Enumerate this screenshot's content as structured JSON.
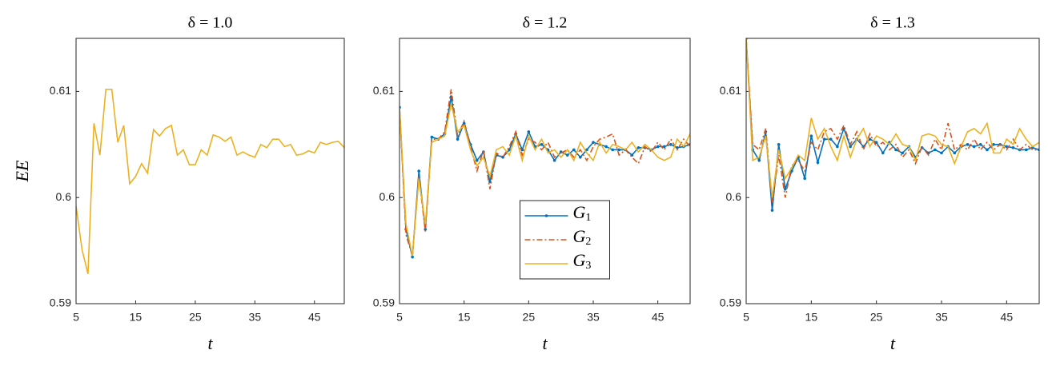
{
  "chart_data": [
    {
      "type": "line",
      "title": "δ = 1.0",
      "xlabel": "t",
      "ylabel": "EE",
      "x": [
        5,
        6,
        7,
        8,
        9,
        10,
        11,
        12,
        13,
        14,
        15,
        16,
        17,
        18,
        19,
        20,
        21,
        22,
        23,
        24,
        25,
        26,
        27,
        28,
        29,
        30,
        31,
        32,
        33,
        34,
        35,
        36,
        37,
        38,
        39,
        40,
        41,
        42,
        43,
        44,
        45,
        46,
        47,
        48,
        49,
        50
      ],
      "xlim": [
        5,
        50
      ],
      "xticks": [
        5,
        15,
        25,
        35,
        45
      ],
      "ylim": [
        0.59,
        0.615
      ],
      "yticks": [
        0.59,
        0.6,
        0.61
      ],
      "series": [
        {
          "color": "#edb120",
          "values": [
            0.5992,
            0.5951,
            0.5928,
            0.607,
            0.604,
            0.6102,
            0.6102,
            0.6052,
            0.6068,
            0.6013,
            0.602,
            0.6032,
            0.6023,
            0.6064,
            0.6058,
            0.6065,
            0.6068,
            0.604,
            0.6045,
            0.6031,
            0.6031,
            0.6045,
            0.604,
            0.6059,
            0.6057,
            0.6053,
            0.6057,
            0.604,
            0.6043,
            0.604,
            0.6038,
            0.605,
            0.6047,
            0.6055,
            0.6055,
            0.6048,
            0.605,
            0.604,
            0.6041,
            0.6044,
            0.6042,
            0.6052,
            0.605,
            0.6052,
            0.6053,
            0.6047
          ]
        }
      ]
    },
    {
      "type": "line",
      "title": "δ = 1.2",
      "xlabel": "t",
      "x": [
        5,
        6,
        7,
        8,
        9,
        10,
        11,
        12,
        13,
        14,
        15,
        16,
        17,
        18,
        19,
        20,
        21,
        22,
        23,
        24,
        25,
        26,
        27,
        28,
        29,
        30,
        31,
        32,
        33,
        34,
        35,
        36,
        37,
        38,
        39,
        40,
        41,
        42,
        43,
        44,
        45,
        46,
        47,
        48,
        49,
        50
      ],
      "xlim": [
        5,
        50
      ],
      "xticks": [
        5,
        15,
        25,
        35,
        45
      ],
      "ylim": [
        0.59,
        0.615
      ],
      "yticks": [
        0.59,
        0.6,
        0.61
      ],
      "legend": "center",
      "series": [
        {
          "name": "G1",
          "color": "#0072bd",
          "marker": "dot",
          "linestyle": "solid",
          "values": [
            0.6085,
            0.597,
            0.5944,
            0.6025,
            0.597,
            0.6057,
            0.6055,
            0.606,
            0.6095,
            0.6055,
            0.607,
            0.605,
            0.6035,
            0.6043,
            0.6015,
            0.604,
            0.6038,
            0.6045,
            0.606,
            0.6045,
            0.6062,
            0.6048,
            0.605,
            0.6045,
            0.6035,
            0.6043,
            0.604,
            0.6045,
            0.6038,
            0.6045,
            0.6052,
            0.605,
            0.6048,
            0.6045,
            0.6045,
            0.6045,
            0.604,
            0.6047,
            0.6047,
            0.6045,
            0.6048,
            0.6048,
            0.605,
            0.6047,
            0.6048,
            0.605
          ]
        },
        {
          "name": "G2",
          "color": "#d95319",
          "linestyle": "dashdot",
          "values": [
            0.6085,
            0.5965,
            0.5945,
            0.602,
            0.5968,
            0.6055,
            0.6055,
            0.6062,
            0.6102,
            0.6058,
            0.6072,
            0.6048,
            0.6025,
            0.6045,
            0.6008,
            0.6042,
            0.6038,
            0.6048,
            0.6062,
            0.604,
            0.6055,
            0.6052,
            0.6045,
            0.6052,
            0.6038,
            0.6042,
            0.6045,
            0.6038,
            0.6045,
            0.6035,
            0.6048,
            0.6055,
            0.6057,
            0.606,
            0.604,
            0.6045,
            0.6038,
            0.6032,
            0.6048,
            0.6043,
            0.6052,
            0.6045,
            0.6055,
            0.6045,
            0.6055,
            0.6048
          ]
        },
        {
          "name": "G3",
          "color": "#edb120",
          "linestyle": "solid",
          "values": [
            0.6085,
            0.5975,
            0.5945,
            0.6018,
            0.5975,
            0.6052,
            0.6055,
            0.6058,
            0.6088,
            0.6062,
            0.6068,
            0.6045,
            0.603,
            0.6038,
            0.602,
            0.6045,
            0.6048,
            0.604,
            0.6058,
            0.6035,
            0.6058,
            0.6045,
            0.6055,
            0.6042,
            0.6045,
            0.6038,
            0.6045,
            0.6035,
            0.6052,
            0.6042,
            0.6035,
            0.6052,
            0.6042,
            0.605,
            0.6048,
            0.6045,
            0.6052,
            0.6043,
            0.605,
            0.6045,
            0.6038,
            0.6035,
            0.6038,
            0.6055,
            0.6048,
            0.606
          ]
        }
      ]
    },
    {
      "type": "line",
      "title": "δ = 1.3",
      "xlabel": "t",
      "x": [
        5,
        6,
        7,
        8,
        9,
        10,
        11,
        12,
        13,
        14,
        15,
        16,
        17,
        18,
        19,
        20,
        21,
        22,
        23,
        24,
        25,
        26,
        27,
        28,
        29,
        30,
        31,
        32,
        33,
        34,
        35,
        36,
        37,
        38,
        39,
        40,
        41,
        42,
        43,
        44,
        45,
        46,
        47,
        48,
        49,
        50
      ],
      "xlim": [
        5,
        50
      ],
      "xticks": [
        5,
        15,
        25,
        35,
        45
      ],
      "ylim": [
        0.59,
        0.615
      ],
      "yticks": [
        0.59,
        0.6,
        0.61
      ],
      "series": [
        {
          "color": "#0072bd",
          "marker": "dot",
          "linestyle": "solid",
          "values": [
            0.615,
            0.6045,
            0.6035,
            0.6062,
            0.5988,
            0.605,
            0.6008,
            0.6025,
            0.6038,
            0.6018,
            0.6058,
            0.6033,
            0.6055,
            0.6055,
            0.6048,
            0.6065,
            0.6048,
            0.6055,
            0.6048,
            0.6055,
            0.6052,
            0.6042,
            0.6052,
            0.6045,
            0.6042,
            0.6048,
            0.6038,
            0.6047,
            0.6042,
            0.6045,
            0.6042,
            0.6048,
            0.6042,
            0.6048,
            0.605,
            0.6048,
            0.605,
            0.6045,
            0.605,
            0.605,
            0.6048,
            0.6047,
            0.6045,
            0.6045,
            0.6047,
            0.6045
          ]
        },
        {
          "color": "#d95319",
          "linestyle": "dashdot",
          "values": [
            0.615,
            0.605,
            0.6045,
            0.6065,
            0.5995,
            0.604,
            0.6,
            0.603,
            0.6035,
            0.6025,
            0.6052,
            0.6045,
            0.6062,
            0.6065,
            0.6055,
            0.6068,
            0.605,
            0.6062,
            0.6045,
            0.606,
            0.6048,
            0.6052,
            0.6045,
            0.605,
            0.6038,
            0.6045,
            0.6032,
            0.6048,
            0.604,
            0.6055,
            0.6045,
            0.607,
            0.6045,
            0.605,
            0.6045,
            0.6055,
            0.6045,
            0.6052,
            0.6045,
            0.605,
            0.6045,
            0.6055,
            0.6045,
            0.605,
            0.6045,
            0.6045
          ]
        },
        {
          "color": "#edb120",
          "linestyle": "solid",
          "values": [
            0.615,
            0.6035,
            0.6038,
            0.6058,
            0.6,
            0.6045,
            0.6018,
            0.6028,
            0.604,
            0.6035,
            0.6075,
            0.6055,
            0.6065,
            0.6048,
            0.6035,
            0.6058,
            0.6038,
            0.6055,
            0.6065,
            0.6048,
            0.6058,
            0.6055,
            0.605,
            0.606,
            0.605,
            0.6048,
            0.6035,
            0.6058,
            0.606,
            0.6058,
            0.605,
            0.6048,
            0.6032,
            0.6048,
            0.6062,
            0.6065,
            0.606,
            0.607,
            0.6042,
            0.6042,
            0.6055,
            0.605,
            0.6065,
            0.6055,
            0.6048,
            0.6052
          ]
        }
      ]
    }
  ]
}
